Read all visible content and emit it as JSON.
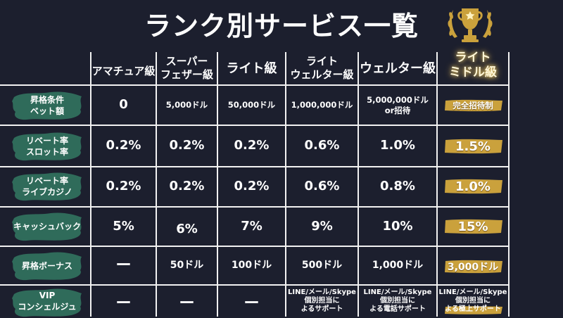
{
  "title": "ランク別サービス一覧",
  "colors": {
    "background": "#1c1f2e",
    "brush": "#2f6b5a",
    "gold": "#caa13c",
    "line": "#f2f2f2"
  },
  "icons": {
    "trophy": "trophy-icon"
  },
  "columns": [
    "アマチュア級",
    "スーパー\nフェザー級",
    "ライト級",
    "ライト\nウェルター級",
    "ウェルター級",
    "ライト\nミドル級"
  ],
  "rows": [
    {
      "label": "昇格条件\nベット額",
      "values": [
        "0",
        "5,000ドル",
        "50,000ドル",
        "1,000,000ドル",
        "5,000,000ドル\nor招待",
        "完全招待制"
      ]
    },
    {
      "label": "リベート率\nスロット率",
      "values": [
        "0.2%",
        "0.2%",
        "0.2%",
        "0.6%",
        "1.0%",
        "1.5%"
      ]
    },
    {
      "label": "リベート率\nライブカジノ",
      "values": [
        "0.2%",
        "0.2%",
        "0.2%",
        "0.6%",
        "0.8%",
        "1.0%"
      ]
    },
    {
      "label": "キャッシュバック",
      "values": [
        "5%",
        "6%",
        "7%",
        "9%",
        "10%",
        "15%"
      ]
    },
    {
      "label": "昇格ボーナス",
      "values": [
        "ー",
        "50ドル",
        "100ドル",
        "500ドル",
        "1,000ドル",
        "3,000ドル"
      ]
    },
    {
      "label": "VIP\nコンシェルジュ",
      "values": [
        "ー",
        "ー",
        "ー",
        "LINE/メール/Skype\n個別担当に\nよるサポート",
        "LINE/メール/Skype\n個別担当に\nよる電話サポート",
        "LINE/メール/Skype\n個別担当に\nよる極上サポート"
      ]
    }
  ]
}
